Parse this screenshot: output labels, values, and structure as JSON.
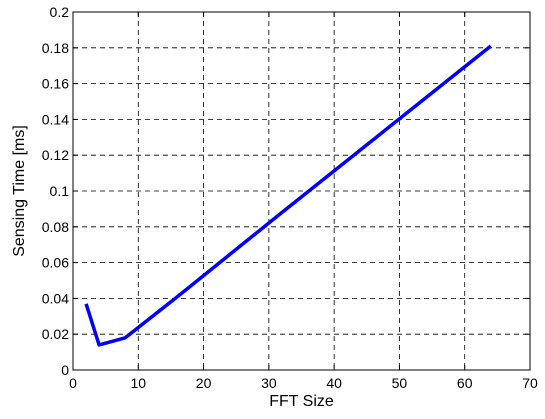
{
  "chart_data": {
    "type": "line",
    "title": "",
    "xlabel": "FFT Size",
    "ylabel": "Sensing Time [ms]",
    "xlim": [
      0,
      70
    ],
    "ylim": [
      0,
      0.2
    ],
    "xticks": [
      "0",
      "10",
      "20",
      "30",
      "40",
      "50",
      "60",
      "70"
    ],
    "yticks": [
      "0",
      "0.02",
      "0.04",
      "0.06",
      "0.08",
      "0.1",
      "0.12",
      "0.14",
      "0.16",
      "0.18",
      "0.2"
    ],
    "grid": true,
    "series": [
      {
        "color": "#0000ff",
        "x": [
          2,
          4,
          8,
          16,
          32,
          64
        ],
        "y": [
          0.037,
          0.014,
          0.018,
          0.041,
          0.088,
          0.181
        ]
      }
    ]
  }
}
